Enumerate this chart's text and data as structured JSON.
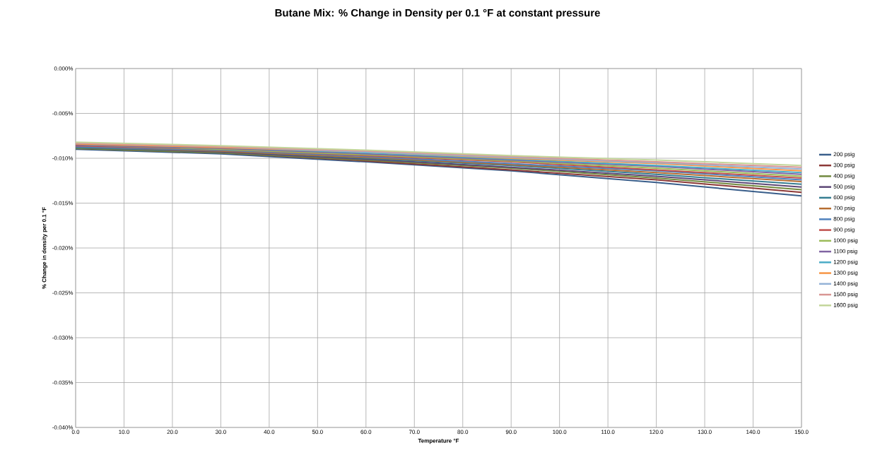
{
  "chart_data": {
    "type": "line",
    "title": "Butane Mix:  % Change in Density per 0.1 °F at constant pressure",
    "xlabel": "Temperature °F",
    "ylabel": "% Change in density per 0.1 °F",
    "x": [
      0,
      30,
      60,
      90,
      120,
      150
    ],
    "xlim": [
      0,
      150
    ],
    "xticks": [
      {
        "value": 0,
        "label": "0.0"
      },
      {
        "value": 10,
        "label": "10.0"
      },
      {
        "value": 20,
        "label": "20.0"
      },
      {
        "value": 30,
        "label": "30.0"
      },
      {
        "value": 40,
        "label": "40.0"
      },
      {
        "value": 50,
        "label": "50.0"
      },
      {
        "value": 60,
        "label": "60.0"
      },
      {
        "value": 70,
        "label": "70.0"
      },
      {
        "value": 80,
        "label": "80.0"
      },
      {
        "value": 90,
        "label": "90.0"
      },
      {
        "value": 100,
        "label": "100.0"
      },
      {
        "value": 110,
        "label": "110.0"
      },
      {
        "value": 120,
        "label": "120.0"
      },
      {
        "value": 130,
        "label": "130.0"
      },
      {
        "value": 140,
        "label": "140.0"
      },
      {
        "value": 150,
        "label": "150.0"
      }
    ],
    "ylim": [
      -0.04,
      0
    ],
    "yticks": [
      {
        "value": -0.04,
        "label": "-0.040%"
      },
      {
        "value": -0.035,
        "label": "-0.035%"
      },
      {
        "value": -0.03,
        "label": "-0.030%"
      },
      {
        "value": -0.025,
        "label": "-0.025%"
      },
      {
        "value": -0.02,
        "label": "-0.020%"
      },
      {
        "value": -0.015,
        "label": "-0.015%"
      },
      {
        "value": -0.01,
        "label": "-0.010%"
      },
      {
        "value": -0.005,
        "label": "-0.005%"
      },
      {
        "value": 0,
        "label": "0.000%"
      }
    ],
    "grid": true,
    "legend": "right",
    "line_style": "solid",
    "series": [
      {
        "name": "200 psig",
        "color": "#385d8a",
        "values": [
          -0.009,
          -0.0095,
          -0.0104,
          -0.0114,
          -0.0127,
          -0.0142
        ]
      },
      {
        "name": "300 psig",
        "color": "#8c3836",
        "values": [
          -0.0089,
          -0.0094,
          -0.0103,
          -0.0113,
          -0.0124,
          -0.0138
        ]
      },
      {
        "name": "400 psig",
        "color": "#71893f",
        "values": [
          -0.0089,
          -0.0094,
          -0.0102,
          -0.0111,
          -0.0122,
          -0.0135
        ]
      },
      {
        "name": "500 psig",
        "color": "#5c4776",
        "values": [
          -0.0088,
          -0.0093,
          -0.0101,
          -0.011,
          -0.012,
          -0.0132
        ]
      },
      {
        "name": "600 psig",
        "color": "#357d91",
        "values": [
          -0.0088,
          -0.0092,
          -0.01,
          -0.0108,
          -0.0118,
          -0.0129
        ]
      },
      {
        "name": "700 psig",
        "color": "#b66d31",
        "values": [
          -0.0087,
          -0.0092,
          -0.0099,
          -0.0107,
          -0.0116,
          -0.0126
        ]
      },
      {
        "name": "800 psig",
        "color": "#4f81bd",
        "values": [
          -0.0087,
          -0.0091,
          -0.0098,
          -0.0106,
          -0.0114,
          -0.0124
        ]
      },
      {
        "name": "900 psig",
        "color": "#c0504d",
        "values": [
          -0.0086,
          -0.009,
          -0.0097,
          -0.0104,
          -0.0113,
          -0.0122
        ]
      },
      {
        "name": "1000 psig",
        "color": "#9bbb59",
        "values": [
          -0.0085,
          -0.009,
          -0.0096,
          -0.0103,
          -0.0111,
          -0.012
        ]
      },
      {
        "name": "1100 psig",
        "color": "#8064a2",
        "values": [
          -0.0085,
          -0.0089,
          -0.0095,
          -0.0102,
          -0.0109,
          -0.0118
        ]
      },
      {
        "name": "1200 psig",
        "color": "#4bacc6",
        "values": [
          -0.0084,
          -0.0088,
          -0.0094,
          -0.0101,
          -0.0108,
          -0.0116
        ]
      },
      {
        "name": "1300 psig",
        "color": "#f79646",
        "values": [
          -0.0084,
          -0.0088,
          -0.0093,
          -0.01,
          -0.0106,
          -0.0114
        ]
      },
      {
        "name": "1400 psig",
        "color": "#95b3d7",
        "values": [
          -0.0083,
          -0.0087,
          -0.0093,
          -0.0099,
          -0.0105,
          -0.0112
        ]
      },
      {
        "name": "1500 psig",
        "color": "#d99694",
        "values": [
          -0.0083,
          -0.0087,
          -0.0092,
          -0.0098,
          -0.0104,
          -0.011
        ]
      },
      {
        "name": "1600 psig",
        "color": "#c3d69b",
        "values": [
          -0.0082,
          -0.0086,
          -0.0091,
          -0.0097,
          -0.0102,
          -0.0108
        ]
      }
    ]
  }
}
